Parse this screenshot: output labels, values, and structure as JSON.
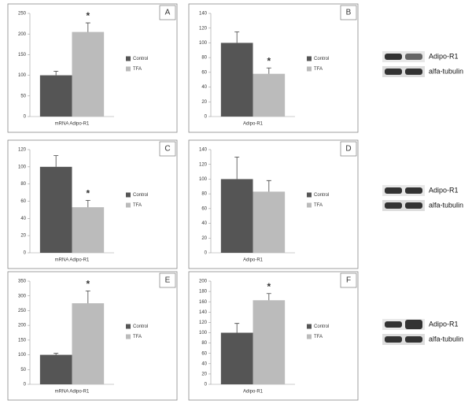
{
  "chart_data": [
    {
      "type": "bar",
      "label": "A",
      "categories": [
        "mRNA Adipo-R1"
      ],
      "ylim": [
        0,
        250
      ],
      "yticks": [
        0,
        50,
        100,
        150,
        200,
        250
      ],
      "annotation": "*",
      "series": [
        {
          "name": "Control",
          "color": "#555555",
          "values": [
            100
          ],
          "errors": [
            10
          ]
        },
        {
          "name": "TFA",
          "color": "#bbbbbb",
          "values": [
            205
          ],
          "errors": [
            22
          ]
        }
      ]
    },
    {
      "type": "bar",
      "label": "B",
      "categories": [
        "Adipo-R1"
      ],
      "ylim": [
        0,
        140
      ],
      "yticks": [
        0,
        20,
        40,
        60,
        80,
        100,
        120,
        140
      ],
      "annotation": "*",
      "series": [
        {
          "name": "Control",
          "color": "#555555",
          "values": [
            100
          ],
          "errors": [
            15
          ]
        },
        {
          "name": "TFA",
          "color": "#bbbbbb",
          "values": [
            58
          ],
          "errors": [
            8
          ]
        }
      ]
    },
    {
      "type": "bar",
      "label": "C",
      "categories": [
        "mRNA Adipo-R1"
      ],
      "ylim": [
        0,
        120
      ],
      "yticks": [
        0,
        20,
        40,
        60,
        80,
        100,
        120
      ],
      "annotation": "*",
      "series": [
        {
          "name": "Control",
          "color": "#555555",
          "values": [
            100
          ],
          "errors": [
            13
          ]
        },
        {
          "name": "TFA",
          "color": "#bbbbbb",
          "values": [
            53
          ],
          "errors": [
            8
          ]
        }
      ]
    },
    {
      "type": "bar",
      "label": "D",
      "categories": [
        "Adipo-R1"
      ],
      "ylim": [
        0,
        140
      ],
      "yticks": [
        0,
        20,
        40,
        60,
        80,
        100,
        120,
        140
      ],
      "series": [
        {
          "name": "Control",
          "color": "#555555",
          "values": [
            100
          ],
          "errors": [
            30
          ]
        },
        {
          "name": "TFA",
          "color": "#bbbbbb",
          "values": [
            83
          ],
          "errors": [
            15
          ]
        }
      ]
    },
    {
      "type": "bar",
      "label": "E",
      "categories": [
        "mRNA Adipo-R1"
      ],
      "ylim": [
        0,
        350
      ],
      "yticks": [
        0,
        50,
        100,
        150,
        200,
        250,
        300,
        350
      ],
      "annotation": "*",
      "series": [
        {
          "name": "Control",
          "color": "#555555",
          "values": [
            100
          ],
          "errors": [
            5
          ]
        },
        {
          "name": "TFA",
          "color": "#bbbbbb",
          "values": [
            275
          ],
          "errors": [
            42
          ]
        }
      ]
    },
    {
      "type": "bar",
      "label": "F",
      "categories": [
        "Adipo-R1"
      ],
      "ylim": [
        0,
        200
      ],
      "yticks": [
        0,
        20,
        40,
        60,
        80,
        100,
        120,
        140,
        160,
        180,
        200
      ],
      "annotation": "*",
      "series": [
        {
          "name": "Control",
          "color": "#555555",
          "values": [
            100
          ],
          "errors": [
            18
          ]
        },
        {
          "name": "TFA",
          "color": "#bbbbbb",
          "values": [
            163
          ],
          "errors": [
            13
          ]
        }
      ]
    }
  ],
  "blots": [
    {
      "labels": [
        "Adipo-R1",
        "alfa-tubulin"
      ]
    },
    {
      "labels": [
        "Adipo-R1",
        "alfa-tubulin"
      ]
    },
    {
      "labels": [
        "Adipo-R1",
        "alfa-tubulin"
      ]
    }
  ]
}
